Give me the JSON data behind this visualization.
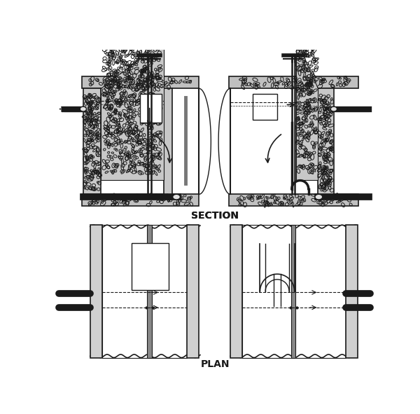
{
  "title_section": "SECTION",
  "title_plan": "PLAN",
  "bg_color": "#ffffff",
  "line_color": "#1a1a1a",
  "fig_width": 6.0,
  "fig_height": 5.91
}
